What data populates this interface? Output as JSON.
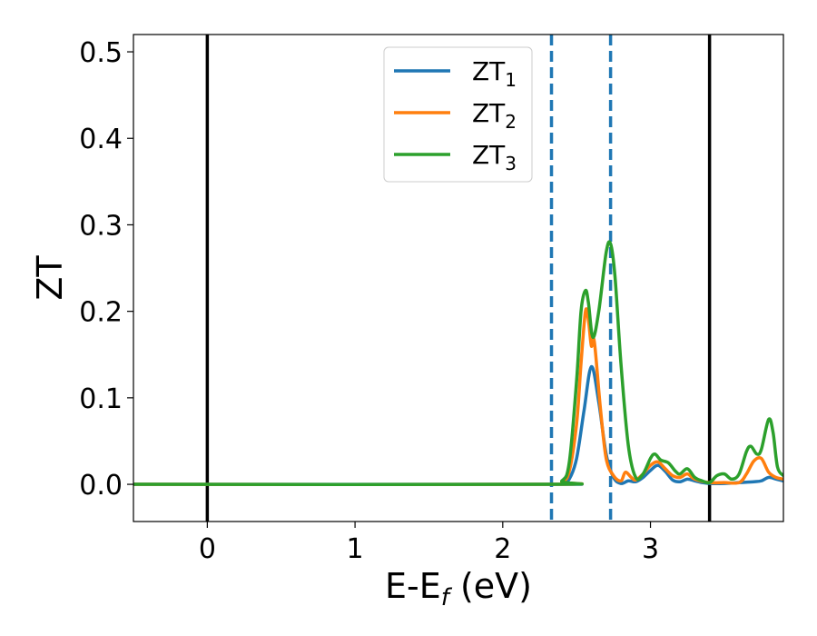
{
  "chart_data": {
    "type": "line",
    "xlabel_main": "E-E",
    "xlabel_sub": "f",
    "xlabel_unit": " (eV)",
    "ylabel": "ZT",
    "xlim": [
      -0.5,
      3.9
    ],
    "ylim": [
      -0.043,
      0.52
    ],
    "xticks": [
      0,
      1,
      2,
      3
    ],
    "yticks": [
      0.0,
      0.1,
      0.2,
      0.3,
      0.4,
      0.5
    ],
    "xtick_labels": [
      "0",
      "1",
      "2",
      "3"
    ],
    "ytick_labels": [
      "0.0",
      "0.1",
      "0.2",
      "0.3",
      "0.4",
      "0.5"
    ],
    "grid": false,
    "legend_position": "top-center",
    "vlines_solid": [
      0.0,
      3.4
    ],
    "vlines_dashed": [
      2.33,
      2.73
    ],
    "series": [
      {
        "name_main": "ZT",
        "name_sub": "1",
        "color": "#1f77b4",
        "points": [
          [
            -0.5,
            0.0
          ],
          [
            2.3,
            0.0
          ],
          [
            2.4,
            0.001
          ],
          [
            2.45,
            0.006
          ],
          [
            2.5,
            0.03
          ],
          [
            2.55,
            0.085
          ],
          [
            2.6,
            0.136
          ],
          [
            2.65,
            0.095
          ],
          [
            2.7,
            0.035
          ],
          [
            2.75,
            0.008
          ],
          [
            2.8,
            0.001
          ],
          [
            2.85,
            0.004
          ],
          [
            2.9,
            0.003
          ],
          [
            2.95,
            0.008
          ],
          [
            3.0,
            0.016
          ],
          [
            3.05,
            0.022
          ],
          [
            3.1,
            0.015
          ],
          [
            3.15,
            0.005
          ],
          [
            3.2,
            0.003
          ],
          [
            3.25,
            0.006
          ],
          [
            3.3,
            0.004
          ],
          [
            3.35,
            0.002
          ],
          [
            3.4,
            0.001
          ],
          [
            3.5,
            0.001
          ],
          [
            3.6,
            0.002
          ],
          [
            3.7,
            0.003
          ],
          [
            3.75,
            0.004
          ],
          [
            3.8,
            0.008
          ],
          [
            3.85,
            0.006
          ],
          [
            3.9,
            0.004
          ]
        ]
      },
      {
        "name_main": "ZT",
        "name_sub": "2",
        "color": "#ff7f0e",
        "points": [
          [
            -0.5,
            0.0
          ],
          [
            2.3,
            0.0
          ],
          [
            2.4,
            0.003
          ],
          [
            2.45,
            0.015
          ],
          [
            2.5,
            0.07
          ],
          [
            2.53,
            0.14
          ],
          [
            2.56,
            0.2
          ],
          [
            2.58,
            0.19
          ],
          [
            2.6,
            0.16
          ],
          [
            2.62,
            0.165
          ],
          [
            2.66,
            0.09
          ],
          [
            2.7,
            0.03
          ],
          [
            2.75,
            0.01
          ],
          [
            2.8,
            0.004
          ],
          [
            2.83,
            0.014
          ],
          [
            2.87,
            0.008
          ],
          [
            2.9,
            0.005
          ],
          [
            2.95,
            0.012
          ],
          [
            3.0,
            0.022
          ],
          [
            3.05,
            0.026
          ],
          [
            3.1,
            0.018
          ],
          [
            3.15,
            0.01
          ],
          [
            3.2,
            0.008
          ],
          [
            3.25,
            0.012
          ],
          [
            3.3,
            0.006
          ],
          [
            3.4,
            0.002
          ],
          [
            3.5,
            0.002
          ],
          [
            3.6,
            0.002
          ],
          [
            3.65,
            0.012
          ],
          [
            3.7,
            0.027
          ],
          [
            3.75,
            0.03
          ],
          [
            3.8,
            0.014
          ],
          [
            3.85,
            0.008
          ],
          [
            3.9,
            0.006
          ]
        ]
      },
      {
        "name_main": "ZT",
        "name_sub": "3",
        "color": "#2ca02c",
        "points": [
          [
            -0.5,
            0.0
          ],
          [
            2.3,
            0.0
          ],
          [
            2.4,
            0.004
          ],
          [
            2.45,
            0.025
          ],
          [
            2.5,
            0.12
          ],
          [
            2.53,
            0.2
          ],
          [
            2.56,
            0.224
          ],
          [
            2.58,
            0.21
          ],
          [
            2.61,
            0.17
          ],
          [
            2.65,
            0.2
          ],
          [
            2.7,
            0.268
          ],
          [
            2.73,
            0.278
          ],
          [
            2.76,
            0.24
          ],
          [
            2.8,
            0.14
          ],
          [
            2.85,
            0.045
          ],
          [
            2.9,
            0.008
          ],
          [
            2.95,
            0.012
          ],
          [
            3.0,
            0.03
          ],
          [
            3.03,
            0.035
          ],
          [
            3.07,
            0.028
          ],
          [
            3.12,
            0.025
          ],
          [
            3.17,
            0.015
          ],
          [
            3.2,
            0.012
          ],
          [
            3.25,
            0.018
          ],
          [
            3.3,
            0.008
          ],
          [
            3.35,
            0.004
          ],
          [
            3.4,
            0.002
          ],
          [
            3.45,
            0.01
          ],
          [
            3.5,
            0.012
          ],
          [
            3.55,
            0.006
          ],
          [
            3.6,
            0.012
          ],
          [
            3.65,
            0.038
          ],
          [
            3.68,
            0.044
          ],
          [
            3.72,
            0.035
          ],
          [
            3.75,
            0.04
          ],
          [
            3.8,
            0.075
          ],
          [
            3.83,
            0.06
          ],
          [
            3.86,
            0.02
          ],
          [
            3.9,
            0.01
          ]
        ]
      }
    ]
  }
}
